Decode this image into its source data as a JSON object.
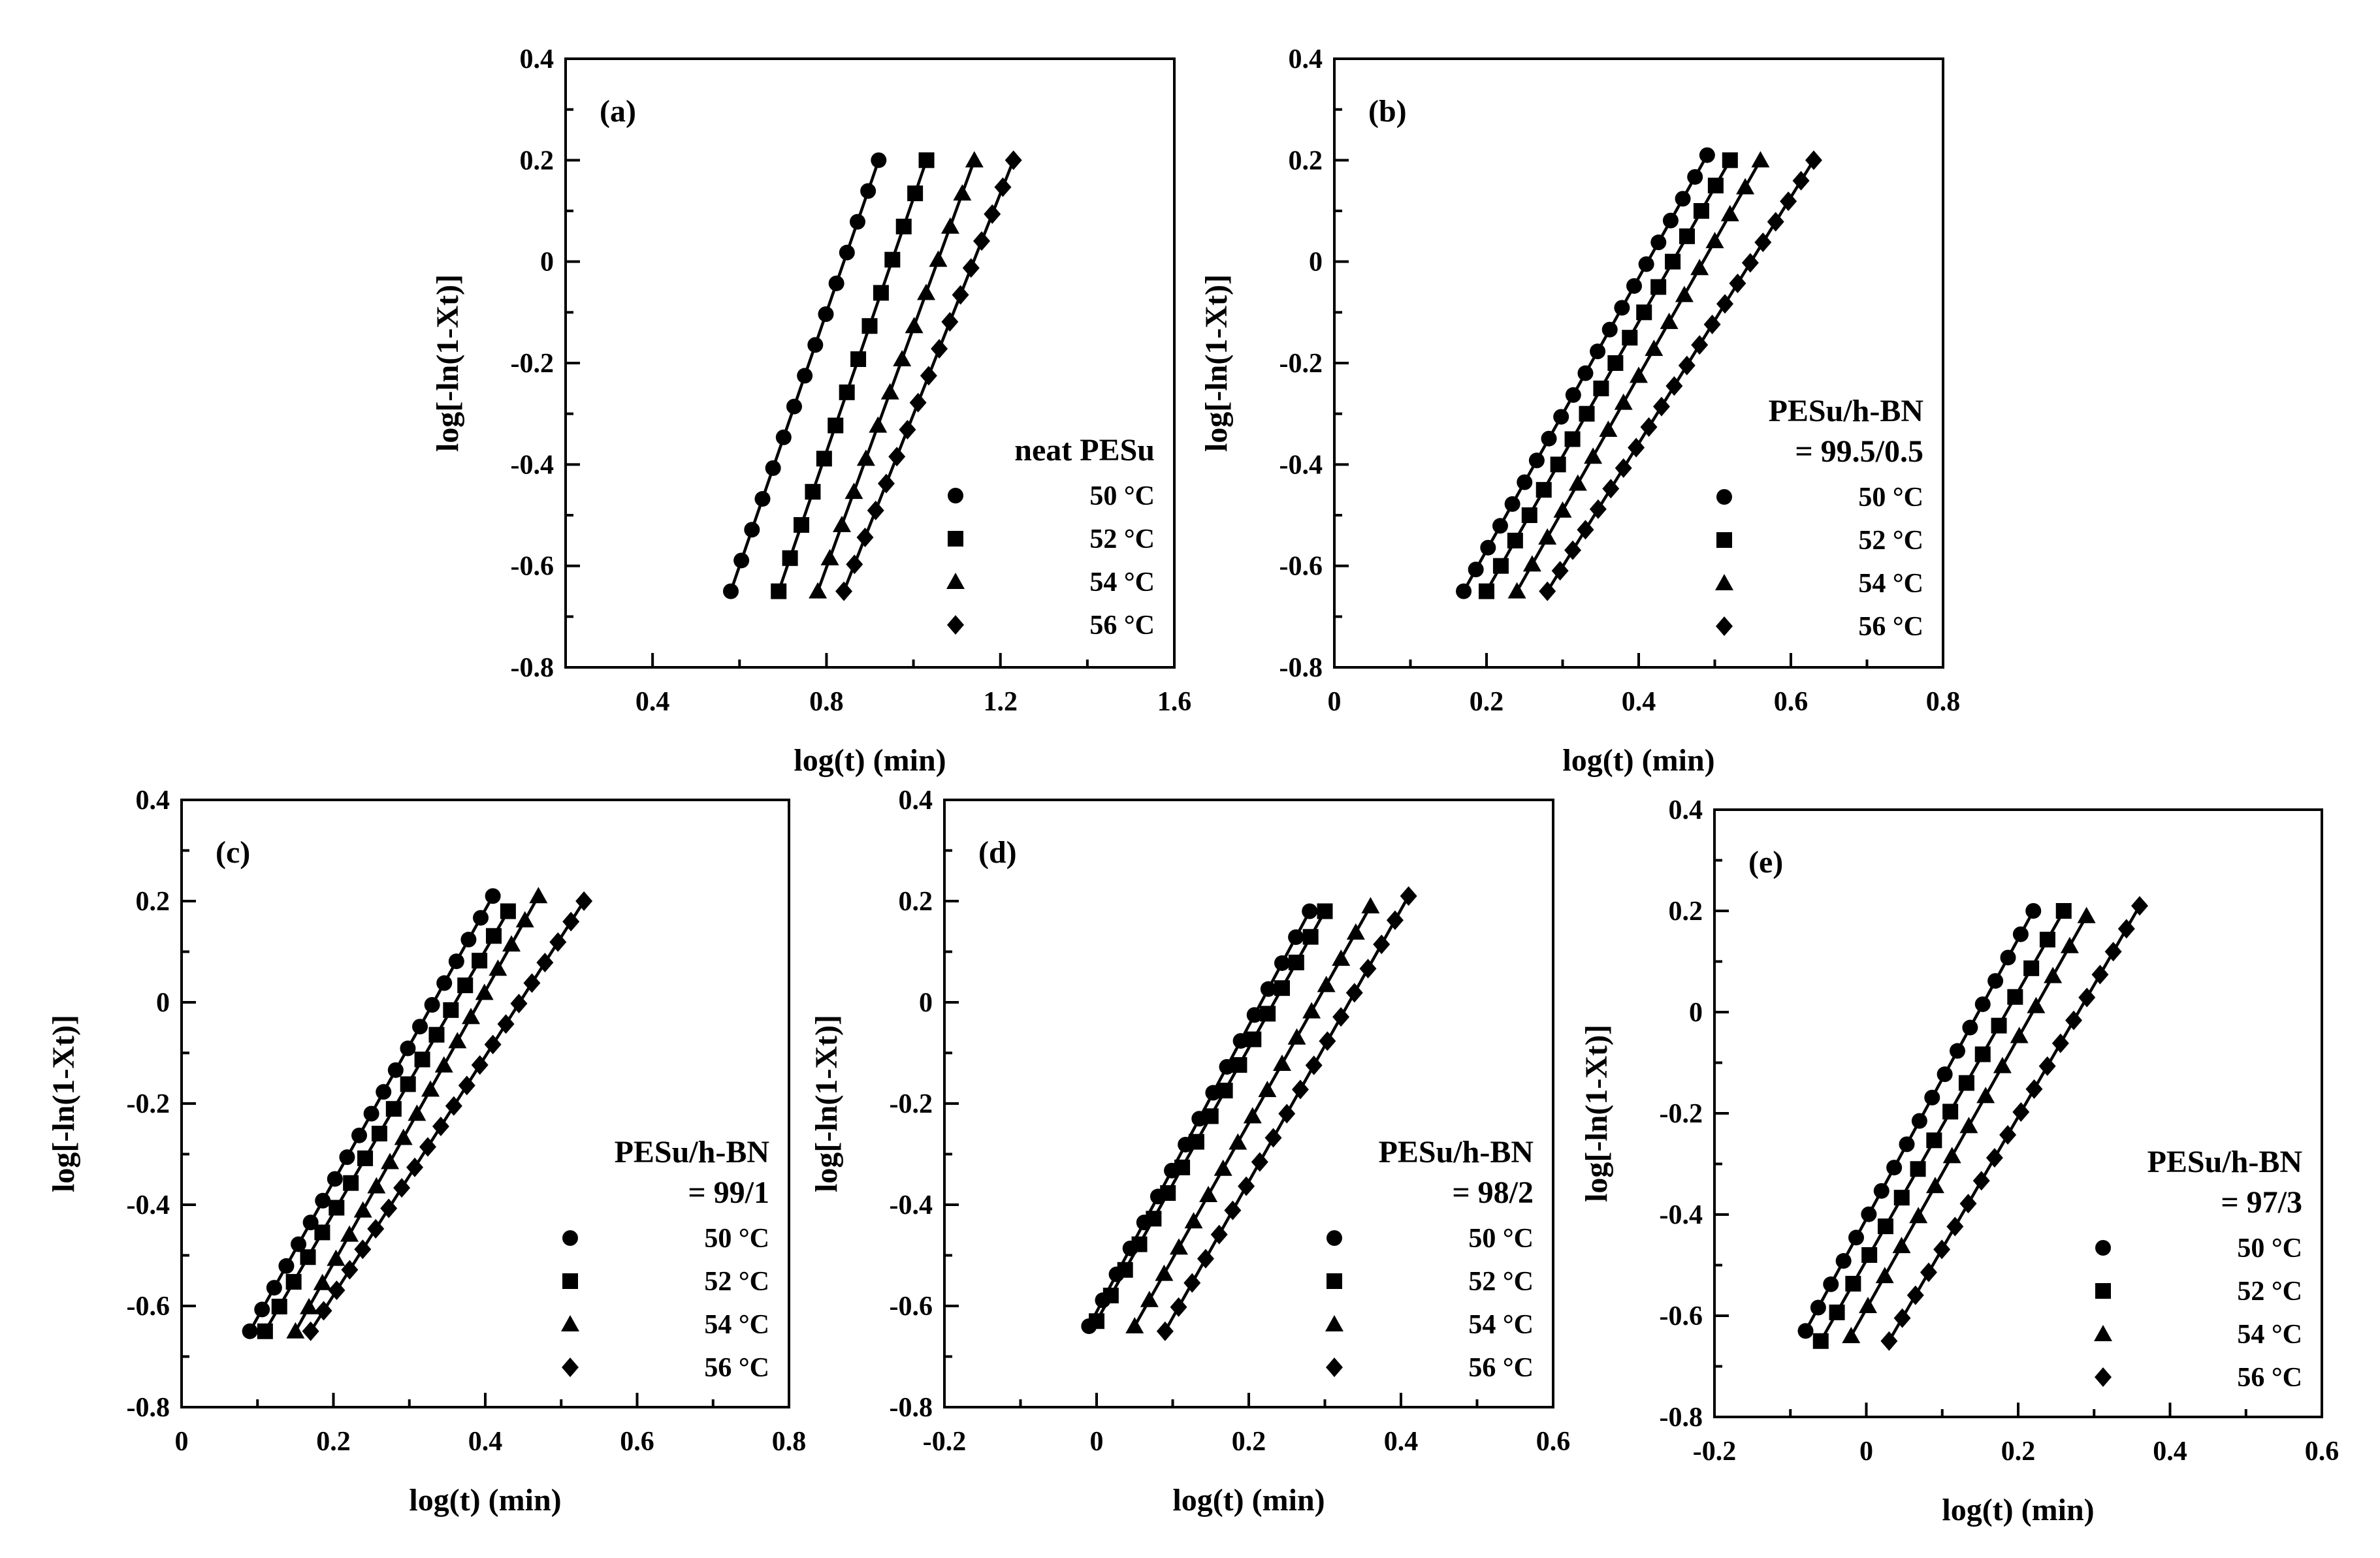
{
  "chart_data": [
    {
      "type": "scatter",
      "panel": "(a)",
      "xlabel": "log(t) (min)",
      "ylabel": "log[-ln(1-Xt)]",
      "xlim": [
        0.2,
        1.6
      ],
      "ylim": [
        -0.8,
        0.4
      ],
      "xticks": [
        "0.4",
        "0.8",
        "1.2",
        "1.6"
      ],
      "yticks": [
        "0.4",
        "0.2",
        "0",
        "-0.2",
        "-0.4",
        "-0.6",
        "-0.8"
      ],
      "legend_title": [
        "neat PESu"
      ],
      "series": [
        {
          "name": "50 °C",
          "marker": "circle",
          "x_start": 0.58,
          "x_end": 0.92,
          "y_start": -0.65,
          "y_end": 0.2,
          "n": 15
        },
        {
          "name": "52 °C",
          "marker": "square",
          "x_start": 0.69,
          "x_end": 1.03,
          "y_start": -0.65,
          "y_end": 0.2,
          "n": 14
        },
        {
          "name": "54 °C",
          "marker": "triangle",
          "x_start": 0.78,
          "x_end": 1.14,
          "y_start": -0.65,
          "y_end": 0.2,
          "n": 14
        },
        {
          "name": "56 °C",
          "marker": "diamond",
          "x_start": 0.84,
          "x_end": 1.23,
          "y_start": -0.65,
          "y_end": 0.2,
          "n": 17
        }
      ]
    },
    {
      "type": "scatter",
      "panel": "(b)",
      "xlabel": "log(t) (min)",
      "ylabel": "log[-ln(1-Xt)]",
      "xlim": [
        0,
        0.8
      ],
      "ylim": [
        -0.8,
        0.4
      ],
      "xticks": [
        "0",
        "0.2",
        "0.4",
        "0.6",
        "0.8"
      ],
      "yticks": [
        "0.4",
        "0.2",
        "0",
        "-0.2",
        "-0.4",
        "-0.6",
        "-0.8"
      ],
      "legend_title": [
        "PESu/h-BN",
        "= 99.5/0.5"
      ],
      "series": [
        {
          "name": "50 °C",
          "marker": "circle",
          "x_start": 0.17,
          "x_end": 0.49,
          "y_start": -0.65,
          "y_end": 0.21,
          "n": 21
        },
        {
          "name": "52 °C",
          "marker": "square",
          "x_start": 0.2,
          "x_end": 0.52,
          "y_start": -0.65,
          "y_end": 0.2,
          "n": 18
        },
        {
          "name": "54 °C",
          "marker": "triangle",
          "x_start": 0.24,
          "x_end": 0.56,
          "y_start": -0.65,
          "y_end": 0.2,
          "n": 17
        },
        {
          "name": "56 °C",
          "marker": "diamond",
          "x_start": 0.28,
          "x_end": 0.63,
          "y_start": -0.65,
          "y_end": 0.2,
          "n": 22
        }
      ]
    },
    {
      "type": "scatter",
      "panel": "(c)",
      "xlabel": "log(t) (min)",
      "ylabel": "log[-ln(1-Xt)]",
      "xlim": [
        0,
        0.8
      ],
      "ylim": [
        -0.8,
        0.4
      ],
      "xticks": [
        "0",
        "0.2",
        "0.4",
        "0.6",
        "0.8"
      ],
      "yticks": [
        "0.4",
        "0.2",
        "0",
        "-0.2",
        "-0.4",
        "-0.6",
        "-0.8"
      ],
      "legend_title": [
        "PESu/h-BN",
        "= 99/1"
      ],
      "series": [
        {
          "name": "50 °C",
          "marker": "circle",
          "x_start": 0.09,
          "x_end": 0.41,
          "y_start": -0.65,
          "y_end": 0.21,
          "n": 21
        },
        {
          "name": "52 °C",
          "marker": "square",
          "x_start": 0.11,
          "x_end": 0.43,
          "y_start": -0.65,
          "y_end": 0.18,
          "n": 18
        },
        {
          "name": "54 °C",
          "marker": "triangle",
          "x_start": 0.15,
          "x_end": 0.47,
          "y_start": -0.65,
          "y_end": 0.21,
          "n": 19
        },
        {
          "name": "56 °C",
          "marker": "diamond",
          "x_start": 0.17,
          "x_end": 0.53,
          "y_start": -0.65,
          "y_end": 0.2,
          "n": 22
        }
      ]
    },
    {
      "type": "scatter",
      "panel": "(d)",
      "xlabel": "log(t) (min)",
      "ylabel": "log[-ln(1-Xt)]",
      "xlim": [
        -0.2,
        0.6
      ],
      "ylim": [
        -0.8,
        0.4
      ],
      "xticks": [
        "-0.2",
        "0",
        "0.2",
        "0.4",
        "0.6"
      ],
      "yticks": [
        "0.4",
        "0.2",
        "0",
        "-0.2",
        "-0.4",
        "-0.6",
        "-0.8"
      ],
      "legend_title": [
        "PESu/h-BN",
        "= 98/2"
      ],
      "series": [
        {
          "name": "50 °C",
          "marker": "circle",
          "x_start": -0.01,
          "x_end": 0.28,
          "y_start": -0.64,
          "y_end": 0.18,
          "n": 17
        },
        {
          "name": "52 °C",
          "marker": "square",
          "x_start": 0.0,
          "x_end": 0.3,
          "y_start": -0.63,
          "y_end": 0.18,
          "n": 17
        },
        {
          "name": "54 °C",
          "marker": "triangle",
          "x_start": 0.05,
          "x_end": 0.36,
          "y_start": -0.64,
          "y_end": 0.19,
          "n": 17
        },
        {
          "name": "56 °C",
          "marker": "diamond",
          "x_start": 0.09,
          "x_end": 0.41,
          "y_start": -0.65,
          "y_end": 0.21,
          "n": 19
        }
      ]
    },
    {
      "type": "scatter",
      "panel": "(e)",
      "xlabel": "log(t) (min)",
      "ylabel": "log[-ln(1-Xt)]",
      "xlim": [
        -0.2,
        0.6
      ],
      "ylim": [
        -0.8,
        0.4
      ],
      "xticks": [
        "-0.2",
        "0",
        "0.2",
        "0.4",
        "0.6"
      ],
      "yticks": [
        "0.4",
        "0.2",
        "0",
        "-0.2",
        "-0.4",
        "-0.6",
        "-0.8"
      ],
      "legend_title": [
        "PESu/h-BN",
        "= 97/3"
      ],
      "series": [
        {
          "name": "50 °C",
          "marker": "circle",
          "x_start": -0.08,
          "x_end": 0.22,
          "y_start": -0.63,
          "y_end": 0.2,
          "n": 19
        },
        {
          "name": "52 °C",
          "marker": "square",
          "x_start": -0.06,
          "x_end": 0.26,
          "y_start": -0.65,
          "y_end": 0.2,
          "n": 16
        },
        {
          "name": "54 °C",
          "marker": "triangle",
          "x_start": -0.02,
          "x_end": 0.29,
          "y_start": -0.64,
          "y_end": 0.19,
          "n": 15
        },
        {
          "name": "56 °C",
          "marker": "diamond",
          "x_start": 0.03,
          "x_end": 0.36,
          "y_start": -0.65,
          "y_end": 0.21,
          "n": 20
        }
      ]
    }
  ]
}
